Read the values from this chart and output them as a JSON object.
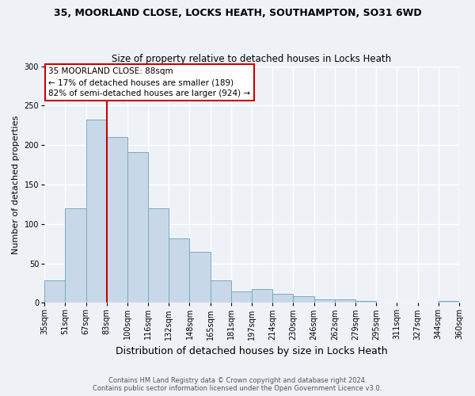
{
  "title_line1": "35, MOORLAND CLOSE, LOCKS HEATH, SOUTHAMPTON, SO31 6WD",
  "title_line2": "Size of property relative to detached houses in Locks Heath",
  "xlabel": "Distribution of detached houses by size in Locks Heath",
  "ylabel": "Number of detached properties",
  "bar_labels": [
    "35sqm",
    "51sqm",
    "67sqm",
    "83sqm",
    "100sqm",
    "116sqm",
    "132sqm",
    "148sqm",
    "165sqm",
    "181sqm",
    "197sqm",
    "214sqm",
    "230sqm",
    "246sqm",
    "262sqm",
    "279sqm",
    "295sqm",
    "311sqm",
    "327sqm",
    "344sqm",
    "360sqm"
  ],
  "bar_heights": [
    28,
    120,
    232,
    210,
    191,
    120,
    82,
    65,
    28,
    14,
    17,
    11,
    8,
    4,
    4,
    2,
    0,
    0,
    0,
    2
  ],
  "bar_color": "#c8d8e8",
  "bar_edge_color": "#7aaac0",
  "vline_color": "#cc0000",
  "vline_position": 3,
  "annotation_title": "35 MOORLAND CLOSE: 88sqm",
  "annotation_line1": "← 17% of detached houses are smaller (189)",
  "annotation_line2": "82% of semi-detached houses are larger (924) →",
  "annotation_box_facecolor": "#ffffff",
  "annotation_box_edgecolor": "#cc0000",
  "ylim": [
    0,
    300
  ],
  "yticks": [
    0,
    50,
    100,
    150,
    200,
    250,
    300
  ],
  "footer_line1": "Contains HM Land Registry data © Crown copyright and database right 2024.",
  "footer_line2": "Contains public sector information licensed under the Open Government Licence v3.0.",
  "background_color": "#eef2f7",
  "grid_color": "#ffffff",
  "title_fontsize": 9,
  "subtitle_fontsize": 8.5,
  "ylabel_fontsize": 8,
  "xlabel_fontsize": 9,
  "tick_fontsize": 7,
  "footer_fontsize": 6
}
